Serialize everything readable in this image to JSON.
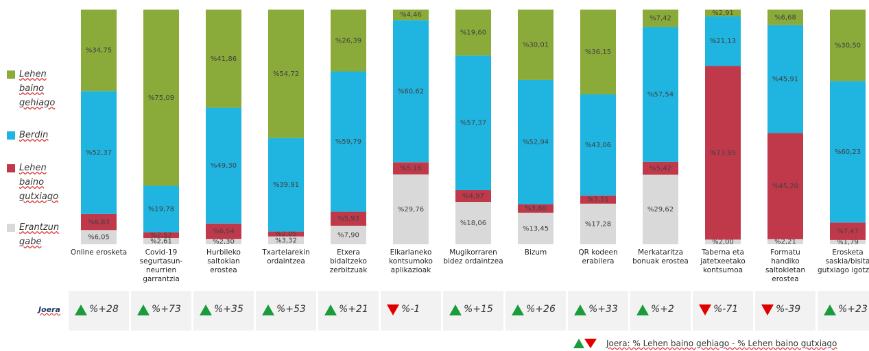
{
  "chart_data": {
    "type": "bar",
    "stacked": true,
    "categories": [
      "Online erosketa",
      "Covid-19 segurtasun-neurrien garrantzia",
      "Hurbileko saltokian erostea",
      "Txartelarekin ordaintzea",
      "Etxera bidaltzeko zerbitzuak",
      "Elkarlaneko kontsumoko aplikazioak",
      "Mugikorraren bidez ordaintzea",
      "Bizum",
      "QR kodeen erabilera",
      "Merkataritza bonuak erostea",
      "Taberna eta jatetxeetako kontsumoa",
      "Formatu handiko saltokietan erostea",
      "Erosketa saskia/bisita gutxiago igotzea"
    ],
    "series": [
      {
        "name": "Erantzun gabe",
        "color": "#d9d9d9",
        "values": [
          6.05,
          2.61,
          2.3,
          3.32,
          7.9,
          29.76,
          18.06,
          13.45,
          17.28,
          29.62,
          2.0,
          2.21,
          1.79
        ],
        "value_labels": [
          "%6,05",
          "%2,61",
          "%2,30",
          "%3,32",
          "%7,90",
          "%29,76",
          "%18,06",
          "%13,45",
          "%17,28",
          "%29,62",
          "%2,00",
          "%2,21",
          "%1,79"
        ]
      },
      {
        "name": "Lehen baino gutxiago",
        "color": "#c0394b",
        "values": [
          6.83,
          2.52,
          6.54,
          2.05,
          5.93,
          5.16,
          4.97,
          3.6,
          3.51,
          5.42,
          73.95,
          45.2,
          7.47
        ],
        "value_labels": [
          "%6,83",
          "%2,52",
          "%6,54",
          "%2,05",
          "%5,93",
          "%5,16",
          "%4,97",
          "%3,60",
          "%3,51",
          "%5,42",
          "%73,95",
          "%45,20",
          "%7,47"
        ]
      },
      {
        "name": "Berdin",
        "color": "#1fb5e0",
        "values": [
          52.37,
          19.78,
          49.3,
          39.91,
          59.79,
          60.62,
          57.37,
          52.94,
          43.06,
          57.54,
          21.13,
          45.91,
          60.23
        ],
        "value_labels": [
          "%52,37",
          "%19,78",
          "%49,30",
          "%39,91",
          "%59,79",
          "%60,62",
          "%57,37",
          "%52,94",
          "%43,06",
          "%57,54",
          "%21,13",
          "%45,91",
          "%60,23"
        ]
      },
      {
        "name": "Lehen baino gehiago",
        "color": "#8aab3a",
        "values": [
          34.75,
          75.09,
          41.86,
          54.72,
          26.39,
          4.46,
          19.6,
          30.01,
          36.15,
          7.42,
          2.91,
          6.68,
          30.5
        ],
        "value_labels": [
          "%34,75",
          "%75,09",
          "%41,86",
          "%54,72",
          "%26,39",
          "%4,46",
          "%19,60",
          "%30,01",
          "%36,15",
          "%7,42",
          "%2,91",
          "%6,68",
          "%30,50"
        ]
      }
    ],
    "trend": {
      "label": "Joera",
      "up_color": "#1a9b3c",
      "down_color": "#e00000",
      "values": [
        28,
        73,
        35,
        53,
        21,
        -1,
        15,
        26,
        33,
        2,
        -71,
        -39,
        23
      ],
      "value_labels": [
        "%+28",
        "%+73",
        "%+35",
        "%+53",
        "%+21",
        "%-1",
        "%+15",
        "%+26",
        "%+33",
        "%+2",
        "%-71",
        "%-39",
        "%+23"
      ]
    },
    "note": "Joera: % Lehen baino gehiago - % Lehen baino gutxiago"
  }
}
